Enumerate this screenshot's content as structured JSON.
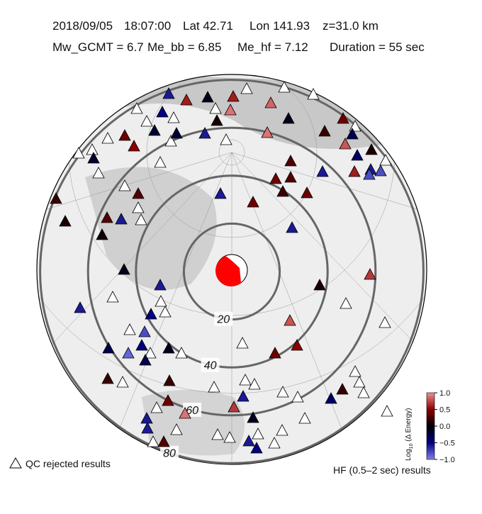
{
  "header": {
    "date": "2018/09/05",
    "time": "18:07:00",
    "lat": "Lat 42.71",
    "lon": "Lon 141.93",
    "depth": "z=31.0 km",
    "mw_gcmt": "Mw_GCMT = 6.7",
    "me_bb": "Me_bb = 6.85",
    "me_hf": "Me_hf = 7.12",
    "duration": "Duration = 55 sec"
  },
  "chart_data": {
    "type": "station-map",
    "distance_rings": [
      20,
      40,
      60,
      80
    ],
    "stations": {
      "values": [
        -0.6,
        0.6,
        -0.1,
        0.6,
        0.9,
        0.85,
        0.1,
        -0.5,
        0.9,
        -0.1,
        0.4,
        -0.3,
        0.2,
        0.8,
        0.1,
        -0.4,
        -0.2,
        -0.6,
        0.4,
        0.5,
        -0.2,
        0.3,
        -0.6,
        0.6,
        -0.6,
        -0.8,
        -0.8,
        0.4,
        0.3,
        0.2,
        0.4,
        0.4,
        -0.6,
        0.2,
        0.3,
        -0.2,
        0.3,
        -0.6,
        0.1,
        0.05,
        -0.6,
        -0.1,
        -0.6,
        -0.6,
        -0.5,
        -0.8,
        -0.3,
        -0.9,
        -0.5,
        -0.3,
        -0.1,
        0.1,
        0.7,
        0.8,
        0.5,
        0.4,
        0.2,
        0.2,
        0.4,
        -0.4,
        0.2,
        0.9,
        0.7,
        -0.6,
        0.3,
        -0.1,
        -0.6,
        -0.5,
        -0.6,
        -0.6
      ]
    },
    "colorbar": {
      "label_main": "Log",
      "label_sub": "10",
      "label_rest": " (Δ Energy)",
      "clim": [
        -1,
        1
      ],
      "ticks": [
        {
          "value": 1,
          "label": "1.0"
        },
        {
          "value": 0.5,
          "label": "0.5"
        },
        {
          "value": 0,
          "label": "0.0"
        },
        {
          "value": -0.5,
          "label": "−0.5"
        },
        {
          "value": -1,
          "label": "−1.0"
        }
      ]
    },
    "legend": {
      "rejected": "QC rejected results",
      "caption": "HF (0.5–2 sec) results"
    }
  }
}
